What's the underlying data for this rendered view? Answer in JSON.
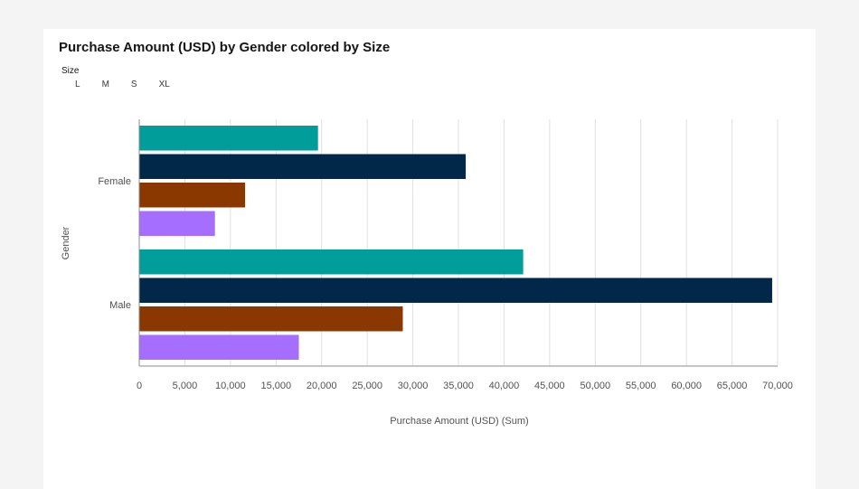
{
  "chart_data": {
    "type": "bar",
    "orientation": "horizontal",
    "title": "Purchase Amount (USD) by Gender colored by Size",
    "xlabel": "Purchase Amount (USD) (Sum)",
    "ylabel": "Gender",
    "categories": [
      "Female",
      "Male"
    ],
    "legend_title": "Size",
    "legend_placement": "top-left",
    "xlim": [
      0,
      70000
    ],
    "xticks": [
      0,
      5000,
      10000,
      15000,
      20000,
      25000,
      30000,
      35000,
      40000,
      45000,
      50000,
      55000,
      60000,
      65000,
      70000
    ],
    "xtick_labels": [
      "0",
      "5,000",
      "10,000",
      "15,000",
      "20,000",
      "25,000",
      "30,000",
      "35,000",
      "40,000",
      "45,000",
      "50,000",
      "55,000",
      "60,000",
      "65,000",
      "70,000"
    ],
    "grid": true,
    "series": [
      {
        "name": "L",
        "color": "#009d9a",
        "values": [
          19600,
          42100
        ]
      },
      {
        "name": "M",
        "color": "#012749",
        "values": [
          35800,
          69400
        ]
      },
      {
        "name": "S",
        "color": "#8a3800",
        "values": [
          11600,
          28900
        ]
      },
      {
        "name": "XL",
        "color": "#a56eff",
        "values": [
          8300,
          17500
        ]
      }
    ]
  }
}
